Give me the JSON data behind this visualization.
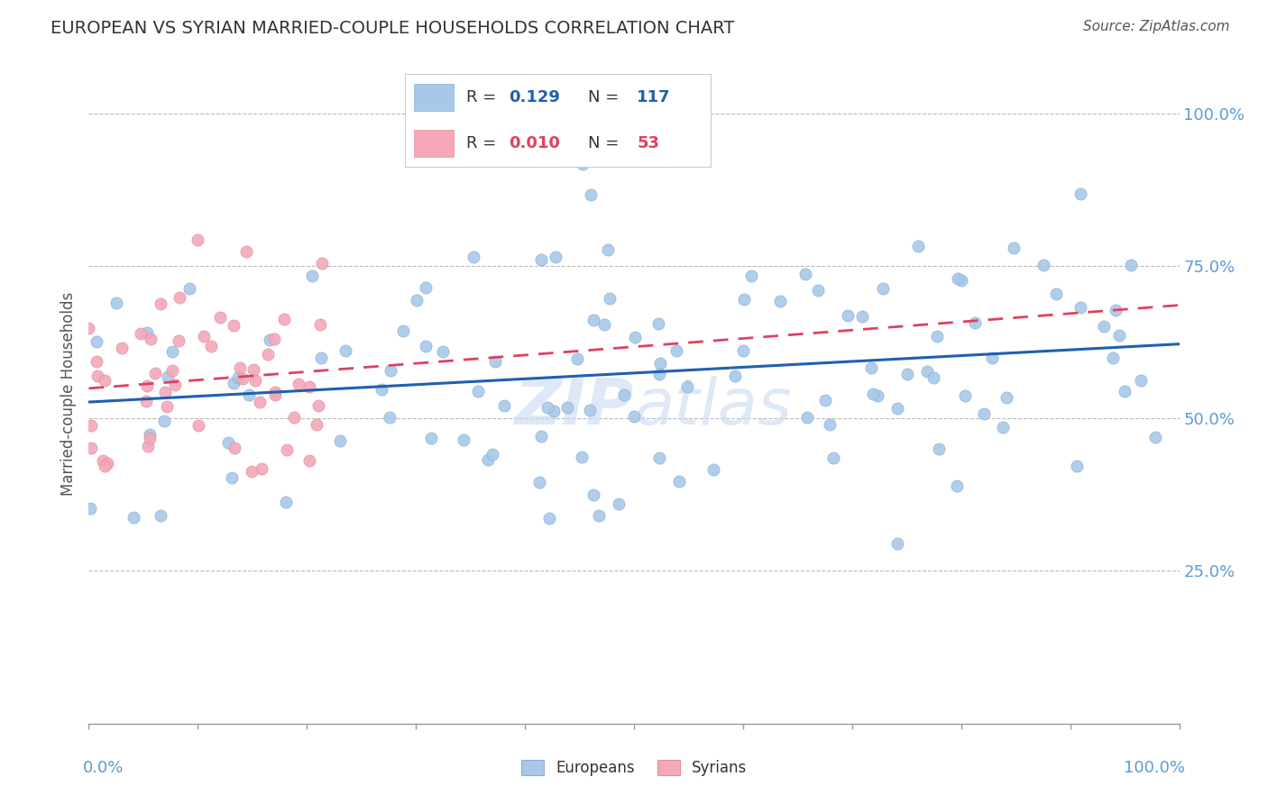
{
  "title": "EUROPEAN VS SYRIAN MARRIED-COUPLE HOUSEHOLDS CORRELATION CHART",
  "source": "Source: ZipAtlas.com",
  "ylabel": "Married-couple Households",
  "european_color": "#a8c8e8",
  "syrian_color": "#f4a8b8",
  "european_line_color": "#2060b0",
  "syrian_line_color": "#e04060",
  "R_european": 0.129,
  "R_syrian": 0.01,
  "N_european": 117,
  "N_syrian": 53,
  "background_color": "#ffffff",
  "grid_color": "#bbbbbb",
  "title_color": "#333333",
  "axis_label_color": "#5b9bd5",
  "watermark_color": "#c8daf0",
  "legend_eu_color": "#a8c8e8",
  "legend_sy_color": "#f4a8b8",
  "legend_R_eu": "0.129",
  "legend_N_eu": "117",
  "legend_R_sy": "0.010",
  "legend_N_sy": "53"
}
